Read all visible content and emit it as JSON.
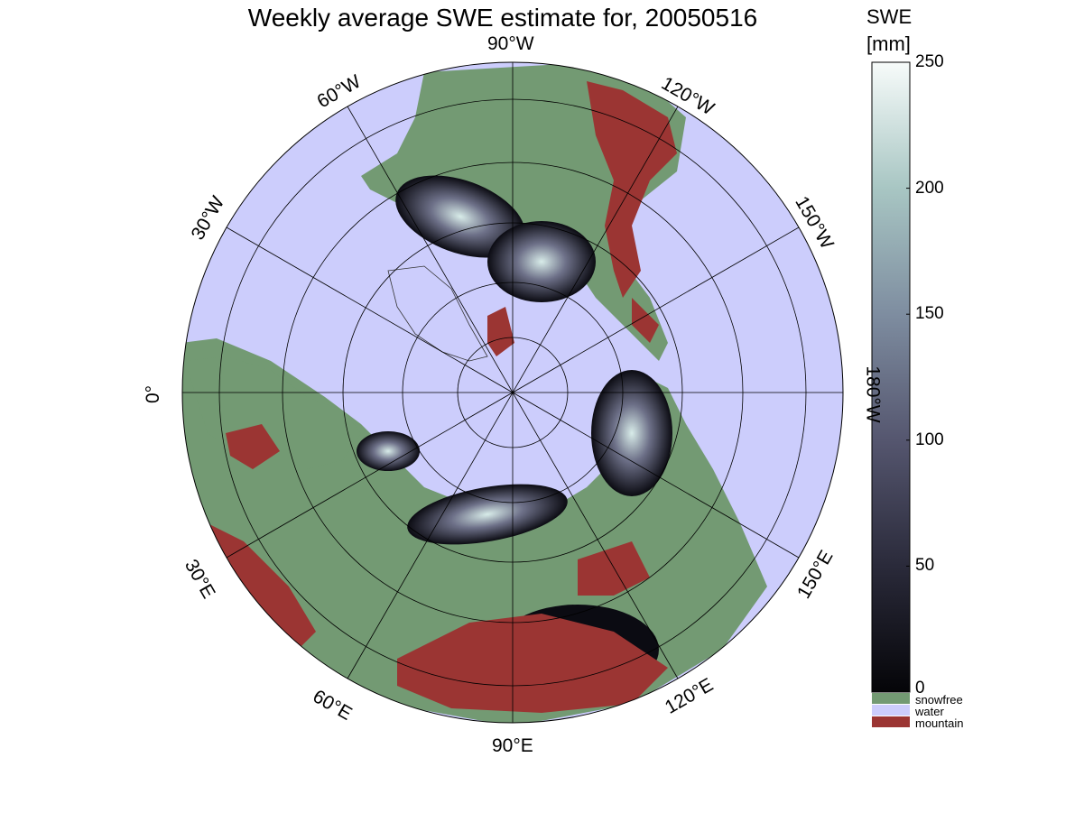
{
  "title": "Weekly average SWE estimate for, 20050516",
  "colorbar": {
    "label_line1": "SWE",
    "label_line2": "[mm]",
    "ticks": [
      "0",
      "50",
      "100",
      "150",
      "200",
      "250"
    ],
    "tick_values": [
      0,
      50,
      100,
      150,
      200,
      250
    ],
    "range": [
      0,
      250
    ],
    "colormap": [
      "#050508",
      "#2a2a3a",
      "#55566f",
      "#7e8da0",
      "#a8c6c3",
      "#f7fbfa"
    ]
  },
  "legend": [
    {
      "label": "snowfree",
      "color": "#739a73"
    },
    {
      "label": "water",
      "color": "#cccdfc"
    },
    {
      "label": "mountain",
      "color": "#9b3533"
    }
  ],
  "longitude_labels": {
    "w90": "90°W",
    "w60": "60°W",
    "w30": "30°W",
    "zero": "0°",
    "e30": "30°E",
    "e60": "60°E",
    "e90": "90°E",
    "e120": "120°E",
    "e150": "150°E",
    "w180": "180°W",
    "w150": "150°W",
    "w120": "120°W"
  },
  "map": {
    "projection": "north polar stereographic",
    "latitude_circles_count": 5,
    "meridian_spacing_deg": 30,
    "ocean_color": "#cccdfc",
    "land_color": "#739a73",
    "mountain_color": "#9b3533"
  }
}
